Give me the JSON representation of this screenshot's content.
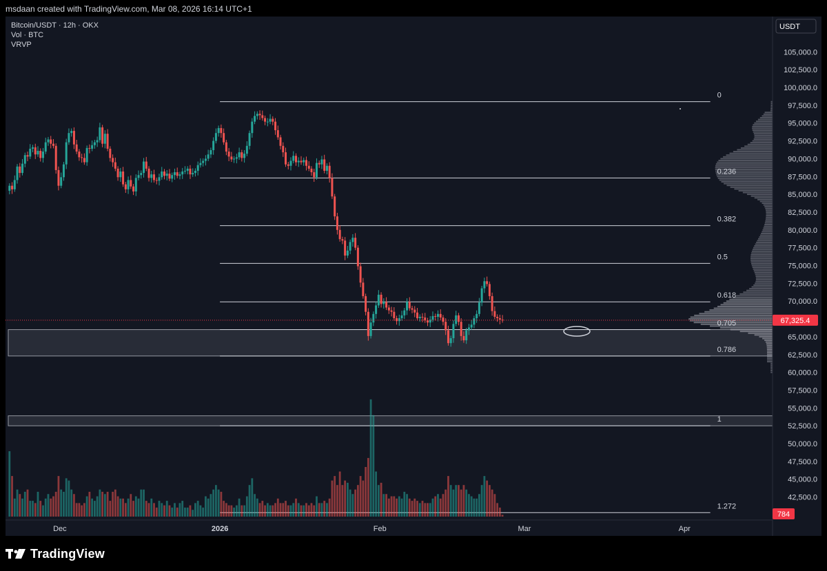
{
  "header": {
    "text": "msdaan created with TradingView.com, Mar 08, 2026 16:14 UTC+1"
  },
  "legend": {
    "symbol": "Bitcoin/USDT · 12h · OKX",
    "volume": "Vol · BTC",
    "vrvp": "VRVP"
  },
  "footer": {
    "brand": "TradingView"
  },
  "colors": {
    "up": "#26a69a",
    "down": "#ef5350",
    "background": "#131722",
    "grid": "#d1d4dc",
    "price_label": "#f23645"
  },
  "chart_data": {
    "type": "candlestick",
    "timeframe": "12h",
    "currency_label": "USDT",
    "y_ticks": [
      105000,
      102500,
      100000,
      97500,
      95000,
      92500,
      90000,
      87500,
      85000,
      82500,
      80000,
      77500,
      75000,
      72500,
      70000,
      67500,
      65000,
      62500,
      60000,
      57500,
      55000,
      52500,
      50000,
      47500,
      45000,
      42500
    ],
    "y_tick_labels": [
      "105,000.0",
      "102,500.0",
      "100,000.0",
      "97,500.0",
      "95,000.0",
      "92,500.0",
      "90,000.0",
      "87,500.0",
      "85,000.0",
      "82,500.0",
      "80,000.0",
      "77,500.0",
      "75,000.0",
      "72,500.0",
      "70,000.0",
      "67,500.0",
      "65,000.0",
      "62,500.0",
      "60,000.0",
      "57,500.0",
      "55,000.0",
      "52,500.0",
      "50,000.0",
      "47,500.0",
      "45,000.0",
      "42,500.0"
    ],
    "ylim": [
      40500,
      107800
    ],
    "x_labels": [
      {
        "label": "Dec",
        "date": "2025-12-01"
      },
      {
        "label": "2026",
        "date": "2026-01-01"
      },
      {
        "label": "Feb",
        "date": "2026-02-01"
      },
      {
        "label": "Mar",
        "date": "2026-03-01"
      },
      {
        "label": "Apr",
        "date": "2026-04-01"
      }
    ],
    "start_date": "2025-11-21",
    "last_price": {
      "value": 67325.4,
      "label": "67,325.4"
    },
    "last_volume": {
      "label": "784"
    },
    "fib_levels": [
      {
        "label": "0",
        "price": 98000
      },
      {
        "label": "0.236",
        "price": 87300
      },
      {
        "label": "0.382",
        "price": 80600
      },
      {
        "label": "0.5",
        "price": 75300
      },
      {
        "label": "0.618",
        "price": 69900
      },
      {
        "label": "0.705",
        "price": 66000
      },
      {
        "label": "0.786",
        "price": 62300
      },
      {
        "label": "1",
        "price": 52500
      },
      {
        "label": "1.272",
        "price": 40300
      }
    ],
    "fib_start_date": "2026-01-01",
    "fib_end_date": "2026-04-06",
    "zones": [
      {
        "from": 62300,
        "to": 66000,
        "start_date": "2025-11-21"
      },
      {
        "from": 52500,
        "to": 53900,
        "start_date": "2025-11-21"
      }
    ],
    "close": [
      86200,
      85700,
      87000,
      88900,
      88000,
      89300,
      90500,
      90300,
      91400,
      91600,
      90600,
      91100,
      90100,
      91000,
      92300,
      92700,
      92100,
      91800,
      88400,
      86200,
      87400,
      89200,
      92300,
      93600,
      93900,
      92000,
      91000,
      90200,
      90100,
      89500,
      91500,
      91400,
      91900,
      92300,
      92600,
      94400,
      92100,
      93500,
      91400,
      90100,
      89500,
      88600,
      87400,
      88200,
      86400,
      85700,
      87000,
      86100,
      85400,
      87300,
      87700,
      88000,
      89600,
      88600,
      87300,
      87800,
      87000,
      86900,
      87400,
      88200,
      87600,
      87900,
      87200,
      87700,
      88100,
      87600,
      87800,
      88200,
      88300,
      88600,
      87800,
      88000,
      88300,
      89100,
      89400,
      89700,
      90000,
      90600,
      91200,
      92500,
      93600,
      94300,
      93600,
      92300,
      91000,
      90300,
      89900,
      90000,
      90200,
      90900,
      90100,
      90700,
      91800,
      93600,
      95200,
      96000,
      96300,
      96100,
      95700,
      95200,
      95200,
      95600,
      95200,
      94000,
      93000,
      91800,
      90900,
      89200,
      89000,
      89700,
      90400,
      89500,
      89700,
      89500,
      89800,
      89000,
      88600,
      88100,
      87400,
      89400,
      89200,
      89900,
      88300,
      89000,
      87300,
      84700,
      81900,
      80000,
      78700,
      78500,
      76400,
      77100,
      78300,
      78900,
      77500,
      74900,
      72600,
      70700,
      68500,
      65100,
      67000,
      68200,
      69400,
      70900,
      69600,
      69900,
      69100,
      68700,
      68500,
      67600,
      67200,
      67600,
      68000,
      68700,
      69900,
      69000,
      68800,
      68400,
      67600,
      67800,
      67700,
      67300,
      67000,
      67400,
      67900,
      67800,
      68200,
      67700,
      67100,
      65900,
      64100,
      64800,
      66800,
      68000,
      67100,
      65100,
      64500,
      65900,
      66300,
      66700,
      67600,
      68200,
      69800,
      71800,
      72800,
      72400,
      70700,
      68600,
      67800,
      67600,
      67400,
      67325
    ],
    "volume": [
      29000,
      18000,
      8000,
      12000,
      10000,
      8000,
      11000,
      12000,
      7000,
      7000,
      6000,
      11000,
      7000,
      5000,
      8000,
      10000,
      8000,
      9000,
      11000,
      18000,
      12000,
      11000,
      17000,
      16000,
      12000,
      10000,
      6000,
      6000,
      5000,
      6000,
      9000,
      11000,
      8000,
      7000,
      9000,
      12000,
      11000,
      10000,
      11000,
      7000,
      11000,
      12000,
      9000,
      8000,
      8000,
      6000,
      8000,
      10000,
      7000,
      9000,
      8000,
      12000,
      12000,
      7000,
      6000,
      8000,
      6000,
      4000,
      7000,
      6000,
      5000,
      7000,
      5000,
      4000,
      6000,
      4000,
      6000,
      7000,
      4000,
      4000,
      5000,
      3000,
      6000,
      7000,
      5000,
      4000,
      9000,
      8000,
      10000,
      12000,
      14000,
      12000,
      11000,
      7000,
      6000,
      5000,
      5000,
      4000,
      5000,
      8000,
      5000,
      5000,
      9000,
      14000,
      17000,
      10000,
      8000,
      6000,
      7000,
      5000,
      6000,
      5000,
      5000,
      6000,
      8000,
      6000,
      6000,
      7000,
      5000,
      5000,
      6000,
      8000,
      6000,
      5000,
      5000,
      6000,
      5000,
      6000,
      5000,
      9000,
      6000,
      6000,
      7000,
      6000,
      8000,
      16000,
      18000,
      14000,
      20000,
      14000,
      16000,
      15000,
      12000,
      10000,
      12000,
      14000,
      18000,
      16000,
      22000,
      26000,
      52000,
      45000,
      20000,
      14000,
      15000,
      10000,
      10000,
      8000,
      9000,
      9000,
      8000,
      9000,
      8000,
      11000,
      10000,
      8000,
      7000,
      8000,
      7000,
      6000,
      7000,
      6000,
      6000,
      6000,
      8000,
      9000,
      10000,
      8000,
      10000,
      12000,
      18000,
      14000,
      12000,
      14000,
      14000,
      12000,
      14000,
      12000,
      10000,
      9000,
      8000,
      8000,
      10000,
      14000,
      18000,
      16000,
      14000,
      12000,
      10000,
      6000,
      4000,
      784
    ],
    "volume_profile": "horizontal volume-by-price histogram on right edge, peak near 67,000"
  }
}
